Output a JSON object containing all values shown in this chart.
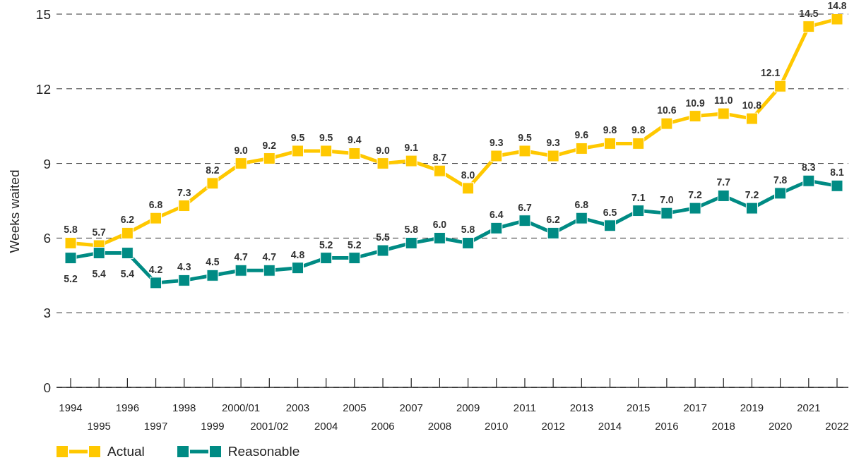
{
  "chart_data": {
    "type": "line",
    "ylabel": "Weeks waited",
    "categories": [
      "1994",
      "1995",
      "1996",
      "1997",
      "1998",
      "1999",
      "2000/01",
      "2001/02",
      "2003",
      "2004",
      "2005",
      "2006",
      "2007",
      "2008",
      "2009",
      "2010",
      "2011",
      "2012",
      "2013",
      "2014",
      "2015",
      "2016",
      "2017",
      "2018",
      "2019",
      "2020",
      "2021",
      "2022"
    ],
    "series": [
      {
        "name": "Actual",
        "color": "#ffc800",
        "values": [
          5.8,
          5.7,
          6.2,
          6.8,
          7.3,
          8.2,
          9.0,
          9.2,
          9.5,
          9.5,
          9.4,
          9.0,
          9.1,
          8.7,
          8.0,
          9.3,
          9.5,
          9.3,
          9.6,
          9.8,
          9.8,
          10.6,
          10.9,
          11.0,
          10.8,
          12.1,
          14.5,
          14.8
        ],
        "value_labels": [
          "5.8",
          "5.7",
          "6.2",
          "6.8",
          "7.3",
          "8.2",
          "9.0",
          "9.2",
          "9.5",
          "9.5",
          "9.4",
          "9.0",
          "9.1",
          "8.7",
          "8.0",
          "9.3",
          "9.5",
          "9.3",
          "9.6",
          "9.8",
          "9.8",
          "10.6",
          "10.9",
          "11.0",
          "10.8",
          "12.1",
          "14.5",
          "14.8"
        ]
      },
      {
        "name": "Reasonable",
        "color": "#008b84",
        "values": [
          5.2,
          5.4,
          5.4,
          4.2,
          4.3,
          4.5,
          4.7,
          4.7,
          4.8,
          5.2,
          5.2,
          5.5,
          5.8,
          6.0,
          5.8,
          6.4,
          6.7,
          6.2,
          6.8,
          6.5,
          7.1,
          7.0,
          7.2,
          7.7,
          7.2,
          7.8,
          8.3,
          8.1
        ],
        "value_labels": [
          "5.2",
          "5.4",
          "5.4",
          "4.2",
          "4.3",
          "4.5",
          "4.7",
          "4.7",
          "4.8",
          "5.2",
          "5.2",
          "5.5",
          "5.8",
          "6.0",
          "5.8",
          "6.4",
          "6.7",
          "6.2",
          "6.8",
          "6.5",
          "7.1",
          "7.0",
          "7.2",
          "7.7",
          "7.2",
          "7.8",
          "8.3",
          "8.1"
        ]
      }
    ],
    "ylim": [
      0,
      15
    ],
    "yticks": [
      0,
      3,
      6,
      9,
      12,
      15
    ],
    "grid": "y",
    "legend": "bottom left",
    "marker": "square",
    "line_style": "solid"
  }
}
